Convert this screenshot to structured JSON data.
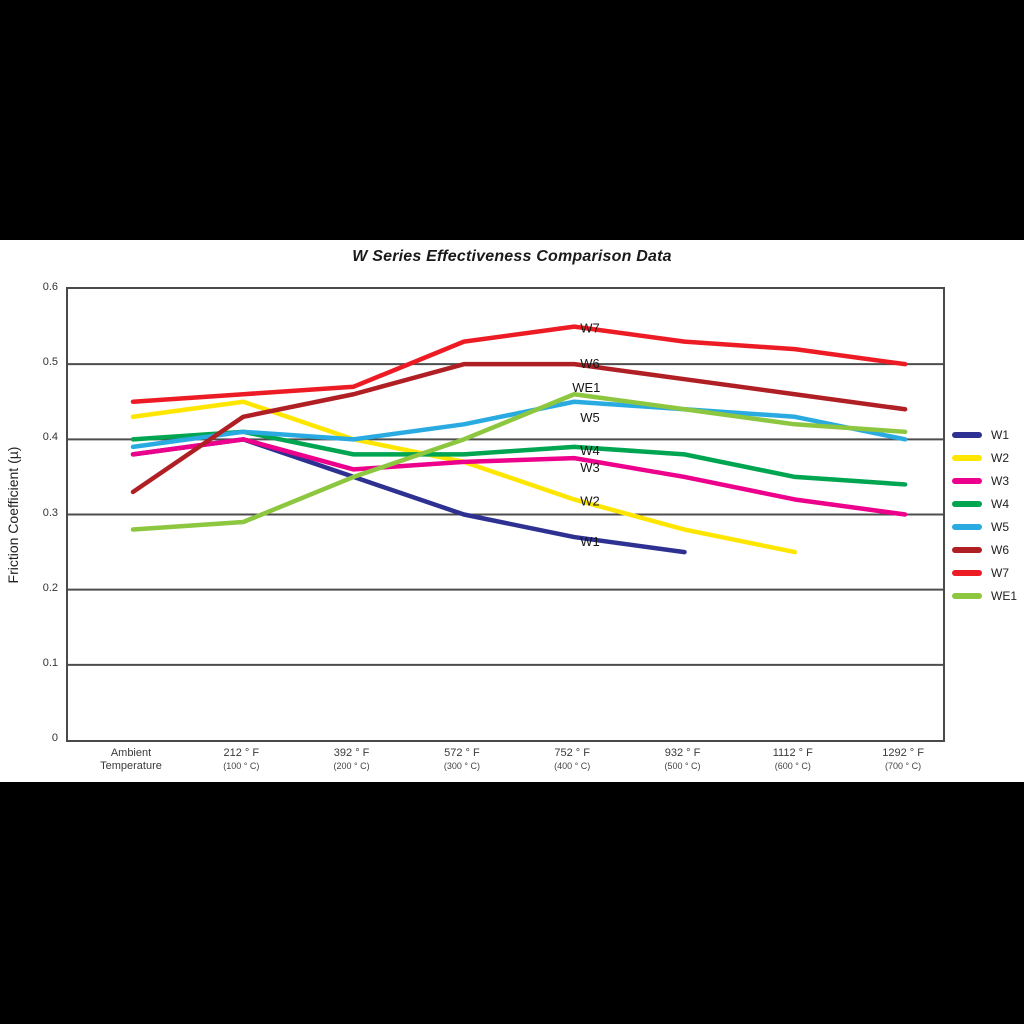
{
  "page": {
    "background": "#000000",
    "band_background": "#ffffff"
  },
  "chart_data": {
    "type": "line",
    "title": "W Series Effectiveness Comparison Data",
    "ylabel": "Friction Coefficient (µ)",
    "ylim": [
      0,
      0.6
    ],
    "yticks": [
      0,
      0.1,
      0.2,
      0.3,
      0.4,
      0.5,
      0.6
    ],
    "grid": "horizontal",
    "legend_position": "right",
    "categories": [
      {
        "label": "Ambient",
        "sub": "Temperature",
        "sub_small": false
      },
      {
        "label": "212 ° F",
        "sub": "(100 ° C)",
        "sub_small": true
      },
      {
        "label": "392 ° F",
        "sub": "(200 ° C)",
        "sub_small": true
      },
      {
        "label": "572 ° F",
        "sub": "(300 ° C)",
        "sub_small": true
      },
      {
        "label": "752 ° F",
        "sub": "(400 ° C)",
        "sub_small": true
      },
      {
        "label": "932 ° F",
        "sub": "(500 ° C)",
        "sub_small": true
      },
      {
        "label": "1112 ° F",
        "sub": "(600 ° C)",
        "sub_small": true
      },
      {
        "label": "1292 ° F",
        "sub": "(700 ° C)",
        "sub_small": true
      }
    ],
    "series": [
      {
        "name": "W1",
        "color": "#2e3192",
        "values": [
          0.38,
          0.4,
          0.35,
          0.3,
          0.27,
          0.25,
          null,
          null
        ],
        "label_at": 4,
        "label_dx": 6,
        "label_dy": 9
      },
      {
        "name": "W2",
        "color": "#ffe600",
        "values": [
          0.43,
          0.45,
          0.4,
          0.37,
          0.32,
          0.28,
          0.25,
          null
        ],
        "label_at": 4,
        "label_dx": 6,
        "label_dy": 6
      },
      {
        "name": "W3",
        "color": "#ec008c",
        "values": [
          0.38,
          0.4,
          0.36,
          0.37,
          0.375,
          0.35,
          0.32,
          0.3
        ],
        "label_at": 4,
        "label_dx": 6,
        "label_dy": 14
      },
      {
        "name": "W4",
        "color": "#00a551",
        "values": [
          0.4,
          0.41,
          0.38,
          0.38,
          0.39,
          0.38,
          0.35,
          0.34
        ],
        "label_at": 4,
        "label_dx": 6,
        "label_dy": 8
      },
      {
        "name": "W5",
        "color": "#29abe2",
        "values": [
          0.39,
          0.41,
          0.4,
          0.42,
          0.45,
          0.44,
          0.43,
          0.4
        ],
        "label_at": 4,
        "label_dx": 6,
        "label_dy": 20
      },
      {
        "name": "W6",
        "color": "#b01f24",
        "values": [
          0.33,
          0.43,
          0.46,
          0.5,
          0.5,
          0.48,
          0.46,
          0.44
        ],
        "label_at": 4,
        "label_dx": 6,
        "label_dy": 4
      },
      {
        "name": "W7",
        "color": "#ed1c24",
        "values": [
          0.45,
          0.46,
          0.47,
          0.53,
          0.55,
          0.53,
          0.52,
          0.5
        ],
        "label_at": 4,
        "label_dx": 6,
        "label_dy": 6
      },
      {
        "name": "WE1",
        "color": "#8dc63f",
        "values": [
          0.28,
          0.29,
          0.35,
          0.4,
          0.46,
          0.44,
          0.42,
          0.41
        ],
        "label_at": 4,
        "label_dx": -2,
        "label_dy": -2
      }
    ]
  }
}
